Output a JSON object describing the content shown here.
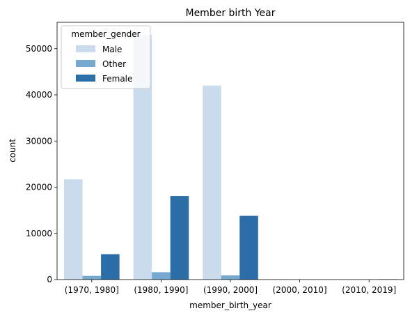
{
  "chart_data": {
    "type": "bar",
    "title": "Member birth Year",
    "xlabel": "member_birth_year",
    "ylabel": "count",
    "categories": [
      "(1970, 1980]",
      "(1980, 1990]",
      "(1990, 2000]",
      "(2000, 2010]",
      "(2010, 2019]"
    ],
    "series": [
      {
        "name": "Male",
        "color": "#c9dbec",
        "values": [
          21700,
          53000,
          42000,
          50,
          0
        ]
      },
      {
        "name": "Other",
        "color": "#75a9cf",
        "values": [
          800,
          1600,
          900,
          0,
          0
        ]
      },
      {
        "name": "Female",
        "color": "#2c6ea8",
        "values": [
          5500,
          18100,
          13800,
          0,
          80
        ]
      }
    ],
    "ylim": [
      0,
      55700
    ],
    "yticks": [
      0,
      10000,
      20000,
      30000,
      40000,
      50000
    ],
    "legend": {
      "title": "member_gender",
      "position": "top-left"
    },
    "grid": false
  }
}
